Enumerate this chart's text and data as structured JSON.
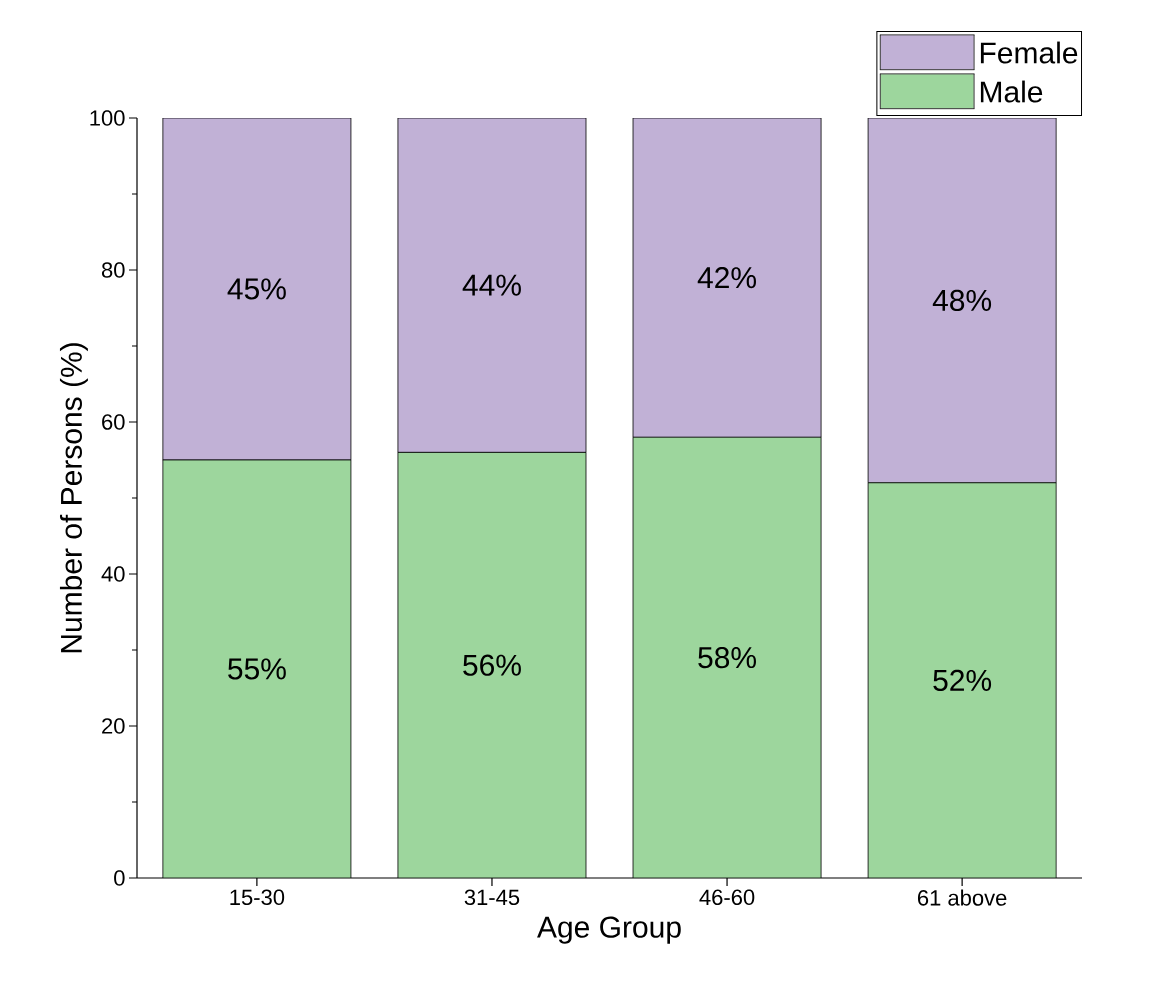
{
  "chart_data": {
    "type": "bar",
    "stacked": true,
    "xlabel": "Age Group",
    "ylabel": "Number of Persons (%)",
    "categories": [
      "15-30",
      "31-45",
      "46-60",
      "61 above"
    ],
    "series": [
      {
        "name": "Male",
        "color": "#9dd69d",
        "values": [
          55,
          56,
          58,
          52
        ],
        "value_labels": [
          "55%",
          "56%",
          "58%",
          "52%"
        ]
      },
      {
        "name": "Female",
        "color": "#c1b1d6",
        "values": [
          45,
          44,
          42,
          48
        ],
        "value_labels": [
          "45%",
          "44%",
          "42%",
          "48%"
        ]
      }
    ],
    "ylim": [
      0,
      100
    ],
    "yticks": [
      0,
      20,
      40,
      60,
      80,
      100
    ],
    "legend": "top right",
    "grid": false
  }
}
